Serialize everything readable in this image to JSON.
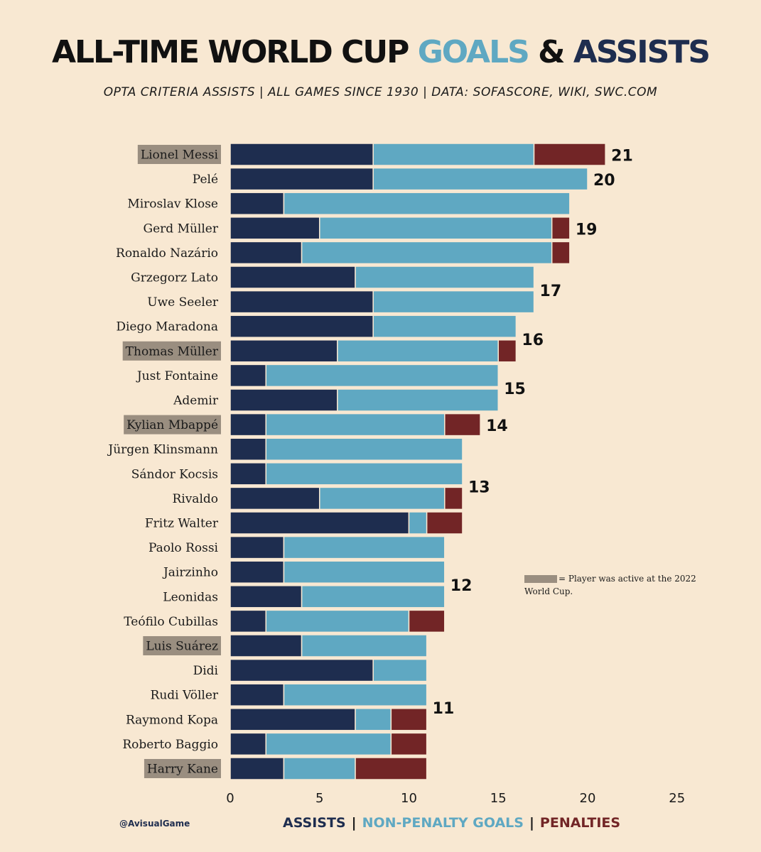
{
  "header": {
    "title_part1": "ALL-TIME WORLD CUP ",
    "title_goals": "GOALS",
    "title_amp": " & ",
    "title_assists": "ASSISTS",
    "subtitle": "OPTA CRITERIA ASSISTS  |  ALL GAMES SINCE 1930  |  DATA: SOFASCORE, WIKI, SWC.COM"
  },
  "note": {
    "text": "= Player was active at the 2022 World Cup."
  },
  "credit": "@AvisualGame",
  "legend": {
    "assists": "ASSISTS",
    "non_penalty_goals": "NON-PENALTY GOALS",
    "penalties": "PENALTIES",
    "separator": "|"
  },
  "colors": {
    "assists": "#1e2d4f",
    "non_penalty_goals": "#5fa8c2",
    "penalties": "#722526",
    "active_highlight": "#9a8e80",
    "background": "#f8e8d2"
  },
  "chart_data": {
    "type": "bar",
    "orientation": "horizontal",
    "stacked": true,
    "xlim": [
      0,
      25
    ],
    "xticks": [
      0,
      5,
      10,
      15,
      20,
      25
    ],
    "categories": [
      "Lionel Messi",
      "Pelé",
      "Miroslav Klose",
      "Gerd Müller",
      "Ronaldo Nazário",
      "Grzegorz Lato",
      "Uwe Seeler",
      "Diego Maradona",
      "Thomas Müller",
      "Just Fontaine",
      "Ademir",
      "Kylian Mbappé",
      "Jürgen Klinsmann",
      "Sándor Kocsis",
      "Rivaldo",
      "Fritz Walter",
      "Paolo Rossi",
      "Jairzinho",
      "Leonidas",
      "Teófilo Cubillas",
      "Luis Suárez",
      "Didi",
      "Rudi Völler",
      "Raymond Kopa",
      "Roberto Baggio",
      "Harry Kane"
    ],
    "active_2022": [
      true,
      false,
      false,
      false,
      false,
      false,
      false,
      false,
      true,
      false,
      false,
      true,
      false,
      false,
      false,
      false,
      false,
      false,
      false,
      false,
      true,
      false,
      false,
      false,
      false,
      true
    ],
    "series": [
      {
        "name": "ASSISTS",
        "color": "#1e2d4f",
        "values": [
          8,
          8,
          3,
          5,
          4,
          7,
          8,
          8,
          6,
          2,
          6,
          2,
          2,
          2,
          5,
          10,
          3,
          3,
          4,
          2,
          4,
          8,
          3,
          7,
          2,
          3
        ]
      },
      {
        "name": "NON-PENALTY GOALS",
        "color": "#5fa8c2",
        "values": [
          9,
          12,
          16,
          13,
          14,
          10,
          9,
          8,
          9,
          13,
          9,
          10,
          11,
          11,
          7,
          1,
          9,
          9,
          8,
          8,
          7,
          3,
          8,
          2,
          7,
          4
        ]
      },
      {
        "name": "PENALTIES",
        "color": "#722526",
        "values": [
          4,
          0,
          0,
          1,
          1,
          0,
          0,
          0,
          1,
          0,
          0,
          2,
          0,
          0,
          1,
          2,
          0,
          0,
          0,
          2,
          0,
          0,
          0,
          2,
          2,
          4
        ]
      }
    ],
    "group_totals": [
      {
        "total": 21,
        "label": "21",
        "rows": [
          0,
          0
        ]
      },
      {
        "total": 20,
        "label": "20",
        "rows": [
          1,
          1
        ]
      },
      {
        "total": 19,
        "label": "19",
        "rows": [
          3,
          3
        ]
      },
      {
        "total": 17,
        "label": "17",
        "rows": [
          5,
          6
        ]
      },
      {
        "total": 16,
        "label": "16",
        "rows": [
          7,
          8
        ]
      },
      {
        "total": 15,
        "label": "15",
        "rows": [
          9,
          10
        ]
      },
      {
        "total": 14,
        "label": "14",
        "rows": [
          11,
          11
        ]
      },
      {
        "total": 13,
        "label": "13",
        "rows": [
          12,
          15
        ]
      },
      {
        "total": 12,
        "label": "12",
        "rows": [
          16,
          19
        ]
      },
      {
        "total": 11,
        "label": "11",
        "rows": [
          20,
          25
        ]
      }
    ]
  }
}
